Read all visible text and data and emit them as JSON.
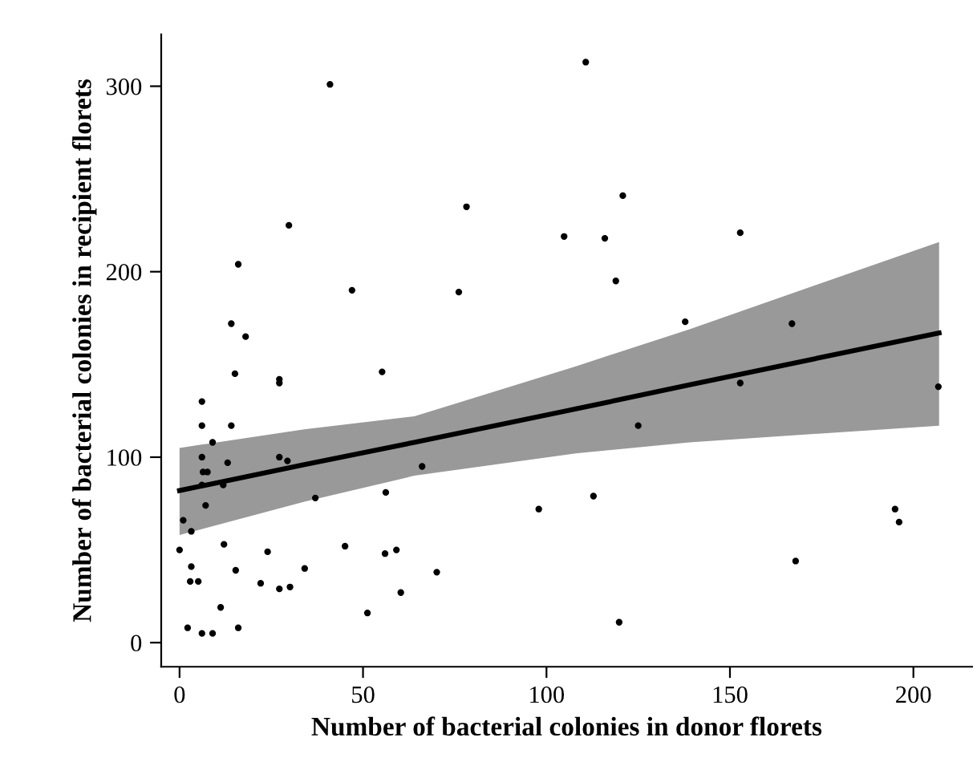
{
  "chart_data": {
    "type": "scatter",
    "xlabel": "Number of bacterial colonies in donor florets",
    "ylabel": "Number of bacterial colonies in recipient florets",
    "xlim": [
      -5,
      216
    ],
    "ylim": [
      -13,
      328
    ],
    "xticks": [
      0,
      50,
      100,
      150,
      200
    ],
    "yticks": [
      0,
      100,
      200,
      300
    ],
    "grid": false,
    "legend": false,
    "marker": "circle",
    "series": [
      {
        "color": "#000000",
        "x": [
          41,
          29.8,
          16,
          47,
          14.1,
          18,
          15.1,
          27.2,
          27.2,
          55.2,
          6.1,
          6.1,
          14.1,
          9,
          6.1,
          13.1,
          27.2,
          29.4,
          6.4,
          7.6,
          6.1,
          11.9,
          7.1,
          1,
          3.2,
          0,
          37,
          56.2,
          66.1,
          12.1,
          24,
          45.1,
          56,
          59.1,
          3.2,
          15.3,
          34.1,
          2.9,
          5.1,
          22.1,
          27.2,
          30.1,
          60.3,
          11.2,
          51.2,
          2.2,
          6.1,
          9,
          16,
          110.7,
          120.8,
          78.2,
          104.8,
          115.9,
          118.9,
          76.1,
          137.8,
          125,
          112.8,
          97.9,
          70.1,
          119.8,
          152.8,
          166.9,
          152.8,
          206.8,
          195,
          196.1,
          167.9
        ],
        "values": [
          301,
          225,
          204,
          190,
          172,
          165,
          145,
          142,
          140,
          146,
          130,
          117,
          117,
          108,
          100,
          97,
          100,
          98,
          92,
          92,
          85,
          85,
          74,
          66,
          60,
          50,
          78,
          81,
          95,
          53,
          49,
          52,
          48,
          50,
          41,
          39,
          40,
          33,
          33,
          32,
          29,
          30,
          27,
          19,
          16,
          8,
          5,
          5,
          8,
          313,
          241,
          235,
          219,
          218,
          195,
          189,
          173,
          117,
          79,
          72,
          38,
          11,
          221,
          172,
          140,
          138,
          72,
          65,
          44
        ]
      },
      {
        "type": "line",
        "color": "#000000",
        "marker": "none",
        "line_style": "solid",
        "x": [
          0,
          34,
          64,
          108,
          139,
          207
        ],
        "values": [
          82,
          96,
          108,
          126,
          139,
          167
        ],
        "lower": [
          58,
          76,
          90,
          102,
          108,
          117
        ],
        "upper": [
          105,
          115,
          122,
          149,
          169,
          216
        ]
      }
    ]
  }
}
